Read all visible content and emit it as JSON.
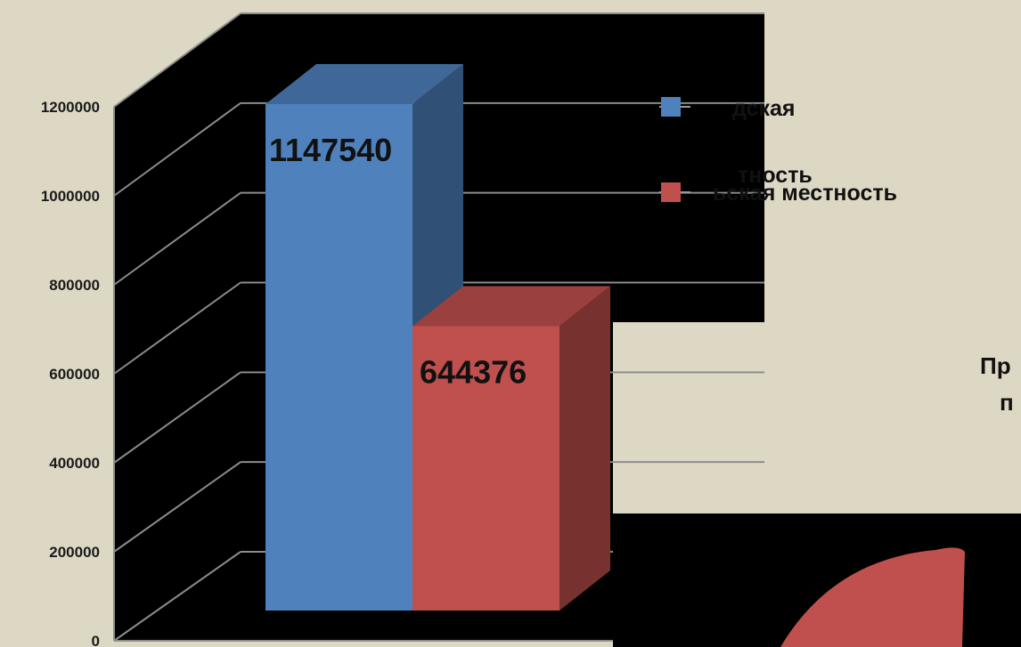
{
  "chart_data": {
    "type": "bar",
    "categories": [
      ""
    ],
    "series": [
      {
        "name": "Городская местность",
        "values": [
          1147540
        ],
        "color": "#4f81bd"
      },
      {
        "name": "Сельская местность",
        "values": [
          644376
        ],
        "color": "#c0504d"
      }
    ],
    "data_labels": [
      "1147540",
      "644376"
    ],
    "yticks": [
      "0",
      "200000",
      "400000",
      "600000",
      "800000",
      "1000000",
      "1200000"
    ],
    "ylim": [
      0,
      1200000
    ],
    "grid": true,
    "legend": {
      "position": "right",
      "visible_fragments": [
        [
          "дская",
          "тность"
        ],
        [
          "ьская местность"
        ]
      ]
    },
    "plot_background": "#000000"
  },
  "partial_text": [
    "Пр",
    "п"
  ],
  "pie_fragment_color": "#c0504d"
}
